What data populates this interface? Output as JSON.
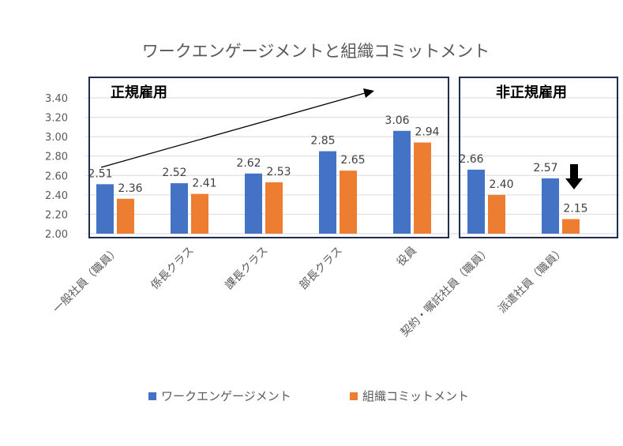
{
  "chart_data": {
    "type": "bar",
    "title": "ワークエンゲージメントと組織コミットメント",
    "categories": [
      "一般社員（職員）",
      "係長クラス",
      "課長クラス",
      "部長クラス",
      "役員",
      "契約・嘱託社員（職員）",
      "派遣社員（職員）"
    ],
    "series": [
      {
        "name": "ワークエンゲージメント",
        "values": [
          2.51,
          2.52,
          2.62,
          2.85,
          3.06,
          2.66,
          2.57
        ],
        "color": "#4472C4"
      },
      {
        "name": "組織コミットメント",
        "values": [
          2.36,
          2.41,
          2.53,
          2.65,
          2.94,
          2.4,
          2.15
        ],
        "color": "#ED7D31"
      }
    ],
    "ylim": [
      2.0,
      3.4
    ],
    "yticks": [
      "2.00",
      "2.20",
      "2.40",
      "2.60",
      "2.80",
      "3.00",
      "3.20",
      "3.40"
    ],
    "groups": [
      {
        "label": "正規雇用",
        "categories": [
          0,
          4
        ]
      },
      {
        "label": "非正規雇用",
        "categories": [
          5,
          6
        ]
      }
    ],
    "annotations": [
      "rising-trend-arrow",
      "down-arrow-icon"
    ],
    "legend_position": "bottom",
    "grid": true
  }
}
